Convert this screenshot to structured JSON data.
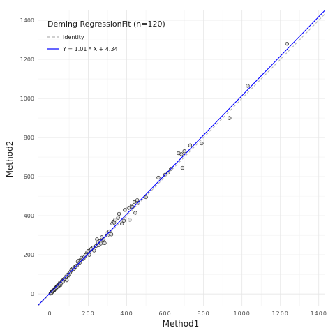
{
  "chart_data": {
    "type": "scatter",
    "title": "",
    "xlabel": "Method1",
    "ylabel": "Method2",
    "xlim": [
      -60,
      1430
    ],
    "ylim": [
      -60,
      1450
    ],
    "x_ticks": [
      0,
      200,
      400,
      600,
      800,
      1000,
      1200,
      1400
    ],
    "y_ticks": [
      0,
      200,
      400,
      600,
      800,
      1000,
      1200,
      1400
    ],
    "grid": true,
    "legend": {
      "position": "top-left",
      "title": "Deming RegressionFit (n=120)",
      "entries": [
        {
          "label": "Identity",
          "color": "#b3b3b3",
          "style": "dashed"
        },
        {
          "label": "Y = 1.01 * X + 4.34",
          "color": "#0000ff",
          "style": "solid"
        }
      ]
    },
    "lines": [
      {
        "name": "Identity",
        "slope": 1.0,
        "intercept": 0,
        "color": "#b3b3b3",
        "dash": true
      },
      {
        "name": "Y = 1.01 * X + 4.34",
        "slope": 1.01,
        "intercept": 4.34,
        "color": "#0000ff",
        "dash": false
      }
    ],
    "series": [
      {
        "points": [
          [
            5,
            5
          ],
          [
            8,
            8
          ],
          [
            10,
            12
          ],
          [
            12,
            10
          ],
          [
            14,
            15
          ],
          [
            16,
            18
          ],
          [
            18,
            20
          ],
          [
            20,
            22
          ],
          [
            22,
            18
          ],
          [
            25,
            26
          ],
          [
            28,
            30
          ],
          [
            30,
            28
          ],
          [
            33,
            35
          ],
          [
            36,
            38
          ],
          [
            40,
            42
          ],
          [
            44,
            40
          ],
          [
            48,
            50
          ],
          [
            52,
            58
          ],
          [
            55,
            45
          ],
          [
            60,
            60
          ],
          [
            65,
            62
          ],
          [
            70,
            72
          ],
          [
            78,
            80
          ],
          [
            85,
            90
          ],
          [
            88,
            70
          ],
          [
            95,
            100
          ],
          [
            100,
            95
          ],
          [
            110,
            118
          ],
          [
            115,
            125
          ],
          [
            120,
            132
          ],
          [
            130,
            138
          ],
          [
            140,
            145
          ],
          [
            145,
            165
          ],
          [
            150,
            170
          ],
          [
            160,
            175
          ],
          [
            165,
            185
          ],
          [
            175,
            180
          ],
          [
            180,
            190
          ],
          [
            190,
            205
          ],
          [
            195,
            215
          ],
          [
            200,
            220
          ],
          [
            205,
            200
          ],
          [
            210,
            225
          ],
          [
            220,
            235
          ],
          [
            225,
            238
          ],
          [
            230,
            222
          ],
          [
            240,
            245
          ],
          [
            245,
            280
          ],
          [
            250,
            265
          ],
          [
            255,
            250
          ],
          [
            260,
            270
          ],
          [
            265,
            258
          ],
          [
            270,
            290
          ],
          [
            275,
            275
          ],
          [
            280,
            280
          ],
          [
            285,
            260
          ],
          [
            295,
            310
          ],
          [
            300,
            300
          ],
          [
            310,
            320
          ],
          [
            320,
            305
          ],
          [
            325,
            360
          ],
          [
            330,
            370
          ],
          [
            335,
            365
          ],
          [
            340,
            380
          ],
          [
            355,
            390
          ],
          [
            360,
            410
          ],
          [
            375,
            360
          ],
          [
            385,
            375
          ],
          [
            390,
            430
          ],
          [
            410,
            440
          ],
          [
            415,
            380
          ],
          [
            425,
            450
          ],
          [
            430,
            445
          ],
          [
            440,
            470
          ],
          [
            445,
            415
          ],
          [
            455,
            480
          ],
          [
            460,
            465
          ],
          [
            500,
            495
          ],
          [
            565,
            595
          ],
          [
            600,
            610
          ],
          [
            615,
            620
          ],
          [
            630,
            640
          ],
          [
            670,
            720
          ],
          [
            685,
            715
          ],
          [
            690,
            645
          ],
          [
            700,
            730
          ],
          [
            730,
            760
          ],
          [
            790,
            770
          ],
          [
            935,
            900
          ],
          [
            1030,
            1065
          ],
          [
            1235,
            1280
          ],
          [
            3,
            2
          ],
          [
            6,
            4
          ],
          [
            9,
            6
          ],
          [
            11,
            14
          ],
          [
            13,
            12
          ],
          [
            17,
            16
          ],
          [
            19,
            24
          ],
          [
            21,
            20
          ],
          [
            24,
            22
          ],
          [
            27,
            25
          ],
          [
            31,
            33
          ],
          [
            34,
            32
          ],
          [
            38,
            36
          ],
          [
            42,
            46
          ],
          [
            46,
            44
          ],
          [
            50,
            48
          ],
          [
            58,
            55
          ],
          [
            62,
            66
          ],
          [
            68,
            64
          ],
          [
            75,
            78
          ],
          [
            82,
            85
          ],
          [
            92,
            96
          ],
          [
            105,
            110
          ],
          [
            125,
            128
          ],
          [
            135,
            140
          ],
          [
            155,
            160
          ],
          [
            170,
            178
          ],
          [
            185,
            198
          ],
          [
            215,
            230
          ]
        ]
      }
    ]
  }
}
